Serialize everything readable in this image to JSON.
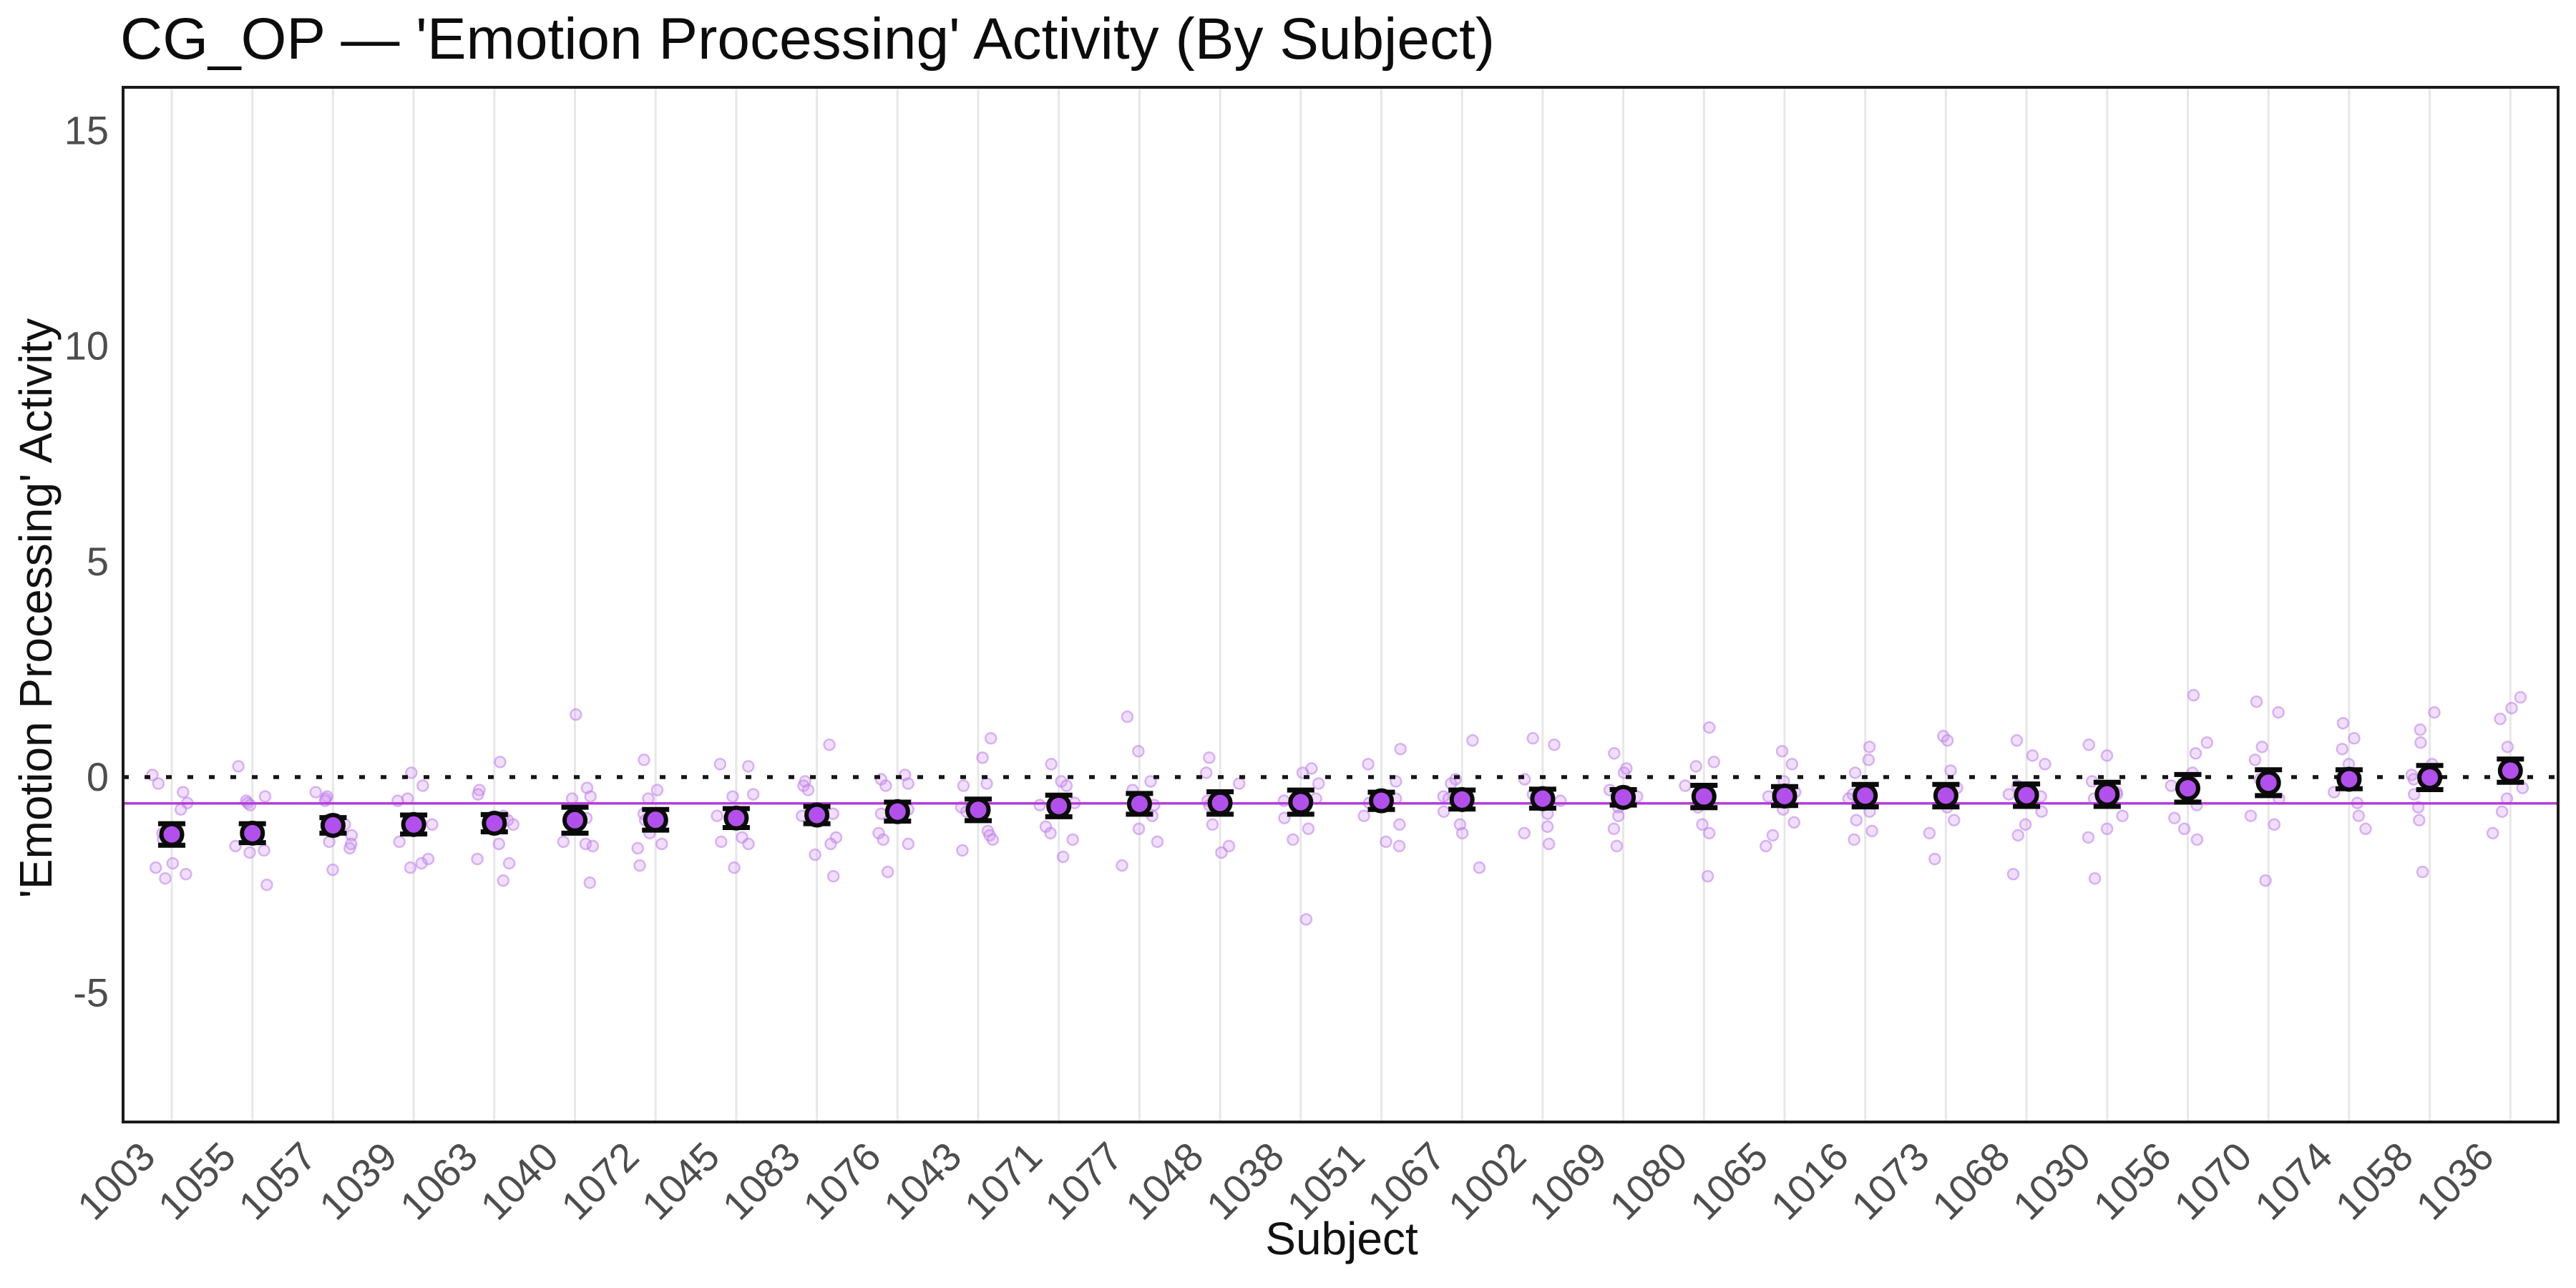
{
  "chart_data": {
    "type": "scatter",
    "title": "CG_OP — 'Emotion Processing' Activity (By Subject)",
    "xlabel": "Subject",
    "ylabel": "'Emotion Processing' Activity",
    "ylim": [
      -8,
      16
    ],
    "yticks": [
      15,
      10,
      5,
      0,
      -5
    ],
    "grid": "vertical-only",
    "legend": "none",
    "reference_lines": {
      "zero_dotted": 0,
      "overall_mean": -0.61
    },
    "colors": {
      "point_fill": "#B250EC",
      "point_stroke": "#0a0a0a",
      "error_bar": "#0a0a0a",
      "raw_fill": "#CD96F0",
      "raw_stroke": "#BD7BEA",
      "overall_mean_line": "#B53CDC",
      "zero_line": "#151515",
      "gridline": "#E7E7E7",
      "panel_border": "#1A1A1A",
      "tick_text": "#4D4D4D"
    },
    "subjects": [
      {
        "id": "1003",
        "mean": -1.33,
        "se": 0.25,
        "raw": [
          0.05,
          -0.15,
          -0.35,
          -0.6,
          -0.75,
          -1.3,
          -1.45,
          -2.0,
          -2.1,
          -2.25,
          -2.35
        ]
      },
      {
        "id": "1055",
        "mean": -1.3,
        "se": 0.22,
        "raw": [
          0.25,
          -0.45,
          -0.55,
          -0.6,
          -0.65,
          -1.35,
          -1.6,
          -1.7,
          -1.75,
          -2.5
        ]
      },
      {
        "id": "1057",
        "mean": -1.12,
        "se": 0.18,
        "raw": [
          -0.35,
          -0.45,
          -0.5,
          -0.55,
          -1.0,
          -1.1,
          -1.35,
          -1.5,
          -1.55,
          -1.65,
          -2.15
        ]
      },
      {
        "id": "1039",
        "mean": -1.1,
        "se": 0.22,
        "raw": [
          0.1,
          -0.2,
          -0.5,
          -0.55,
          -1.05,
          -1.1,
          -1.5,
          -1.9,
          -2.0,
          -2.1
        ]
      },
      {
        "id": "1063",
        "mean": -1.07,
        "se": 0.2,
        "raw": [
          0.35,
          -0.3,
          -0.4,
          -0.9,
          -1.0,
          -1.1,
          -1.55,
          -1.9,
          -2.0,
          -2.4
        ]
      },
      {
        "id": "1040",
        "mean": -1.0,
        "se": 0.3,
        "raw": [
          1.45,
          -0.25,
          -0.45,
          -0.5,
          -0.95,
          -1.05,
          -1.5,
          -1.55,
          -1.6,
          -2.45
        ]
      },
      {
        "id": "1072",
        "mean": -0.99,
        "se": 0.24,
        "raw": [
          0.4,
          -0.3,
          -0.5,
          -0.85,
          -1.0,
          -1.05,
          -1.3,
          -1.55,
          -1.65,
          -2.05
        ]
      },
      {
        "id": "1045",
        "mean": -0.95,
        "se": 0.22,
        "raw": [
          0.3,
          0.25,
          -0.4,
          -0.45,
          -0.9,
          -1.0,
          -1.4,
          -1.5,
          -1.55,
          -2.1
        ]
      },
      {
        "id": "1083",
        "mean": -0.88,
        "se": 0.2,
        "raw": [
          0.75,
          -0.1,
          -0.2,
          -0.3,
          -0.85,
          -0.9,
          -1.4,
          -1.55,
          -1.8,
          -2.3
        ]
      },
      {
        "id": "1076",
        "mean": -0.8,
        "se": 0.22,
        "raw": [
          0.05,
          -0.05,
          -0.15,
          -0.2,
          -0.75,
          -0.85,
          -1.3,
          -1.45,
          -1.55,
          -2.2
        ]
      },
      {
        "id": "1043",
        "mean": -0.76,
        "se": 0.25,
        "raw": [
          0.9,
          0.45,
          -0.15,
          -0.2,
          -0.7,
          -0.8,
          -1.25,
          -1.35,
          -1.45,
          -1.7
        ]
      },
      {
        "id": "1071",
        "mean": -0.67,
        "se": 0.25,
        "raw": [
          0.3,
          -0.1,
          -0.2,
          -0.6,
          -0.65,
          -0.7,
          -1.15,
          -1.3,
          -1.45,
          -1.85
        ]
      },
      {
        "id": "1077",
        "mean": -0.62,
        "se": 0.24,
        "raw": [
          1.4,
          0.6,
          -0.1,
          -0.3,
          -0.6,
          -0.65,
          -0.9,
          -1.2,
          -1.5,
          -2.05
        ]
      },
      {
        "id": "1048",
        "mean": -0.6,
        "se": 0.26,
        "raw": [
          0.45,
          0.1,
          -0.15,
          -0.45,
          -0.55,
          -0.65,
          -0.75,
          -1.1,
          -1.6,
          -1.75
        ]
      },
      {
        "id": "1038",
        "mean": -0.58,
        "se": 0.28,
        "raw": [
          0.2,
          0.1,
          -0.15,
          -0.5,
          -0.55,
          -0.6,
          -0.95,
          -1.2,
          -1.45,
          -3.3
        ]
      },
      {
        "id": "1051",
        "mean": -0.55,
        "se": 0.2,
        "raw": [
          0.65,
          0.3,
          -0.1,
          -0.45,
          -0.5,
          -0.6,
          -0.9,
          -1.1,
          -1.5,
          -1.6
        ]
      },
      {
        "id": "1067",
        "mean": -0.52,
        "se": 0.22,
        "raw": [
          0.85,
          -0.05,
          -0.15,
          -0.45,
          -0.5,
          -0.55,
          -0.8,
          -1.1,
          -1.3,
          -2.1
        ]
      },
      {
        "id": "1002",
        "mean": -0.5,
        "se": 0.22,
        "raw": [
          0.9,
          0.75,
          -0.05,
          -0.4,
          -0.45,
          -0.55,
          -0.85,
          -1.15,
          -1.3,
          -1.55
        ]
      },
      {
        "id": "1069",
        "mean": -0.47,
        "se": 0.18,
        "raw": [
          0.55,
          0.2,
          0.1,
          -0.3,
          -0.45,
          -0.5,
          -0.7,
          -0.9,
          -1.2,
          -1.6
        ]
      },
      {
        "id": "1080",
        "mean": -0.45,
        "se": 0.26,
        "raw": [
          1.15,
          0.35,
          0.25,
          -0.2,
          -0.4,
          -0.45,
          -0.7,
          -1.1,
          -1.3,
          -2.3
        ]
      },
      {
        "id": "1065",
        "mean": -0.44,
        "se": 0.22,
        "raw": [
          0.6,
          0.3,
          -0.1,
          -0.35,
          -0.45,
          -0.5,
          -0.75,
          -1.05,
          -1.35,
          -1.6
        ]
      },
      {
        "id": "1016",
        "mean": -0.43,
        "se": 0.26,
        "raw": [
          0.7,
          0.4,
          0.1,
          -0.3,
          -0.4,
          -0.5,
          -0.8,
          -1.0,
          -1.25,
          -1.45
        ]
      },
      {
        "id": "1073",
        "mean": -0.43,
        "se": 0.26,
        "raw": [
          0.95,
          0.85,
          0.15,
          -0.25,
          -0.4,
          -0.45,
          -0.7,
          -1.0,
          -1.3,
          -1.9
        ]
      },
      {
        "id": "1068",
        "mean": -0.42,
        "se": 0.26,
        "raw": [
          0.85,
          0.5,
          0.3,
          -0.2,
          -0.4,
          -0.45,
          -0.8,
          -1.1,
          -1.35,
          -2.25
        ]
      },
      {
        "id": "1030",
        "mean": -0.4,
        "se": 0.28,
        "raw": [
          0.75,
          0.5,
          -0.1,
          -0.35,
          -0.4,
          -0.5,
          -0.9,
          -1.2,
          -1.4,
          -2.35
        ]
      },
      {
        "id": "1056",
        "mean": -0.26,
        "se": 0.32,
        "raw": [
          1.9,
          0.8,
          0.55,
          0.1,
          -0.2,
          -0.3,
          -0.65,
          -0.95,
          -1.2,
          -1.45
        ]
      },
      {
        "id": "1070",
        "mean": -0.13,
        "se": 0.3,
        "raw": [
          1.75,
          1.5,
          0.7,
          0.4,
          -0.05,
          -0.15,
          -0.5,
          -0.9,
          -1.1,
          -2.4
        ]
      },
      {
        "id": "1074",
        "mean": -0.05,
        "se": 0.22,
        "raw": [
          1.25,
          0.9,
          0.65,
          0.3,
          0.0,
          -0.1,
          -0.35,
          -0.6,
          -0.9,
          -1.2
        ]
      },
      {
        "id": "1058",
        "mean": -0.01,
        "se": 0.28,
        "raw": [
          1.5,
          1.1,
          0.8,
          0.3,
          0.05,
          -0.05,
          -0.4,
          -0.7,
          -1.0,
          -2.2
        ]
      },
      {
        "id": "1036",
        "mean": 0.15,
        "se": 0.27,
        "raw": [
          1.85,
          1.6,
          1.35,
          0.7,
          0.2,
          0.1,
          -0.25,
          -0.5,
          -0.8,
          -1.3
        ]
      }
    ]
  }
}
